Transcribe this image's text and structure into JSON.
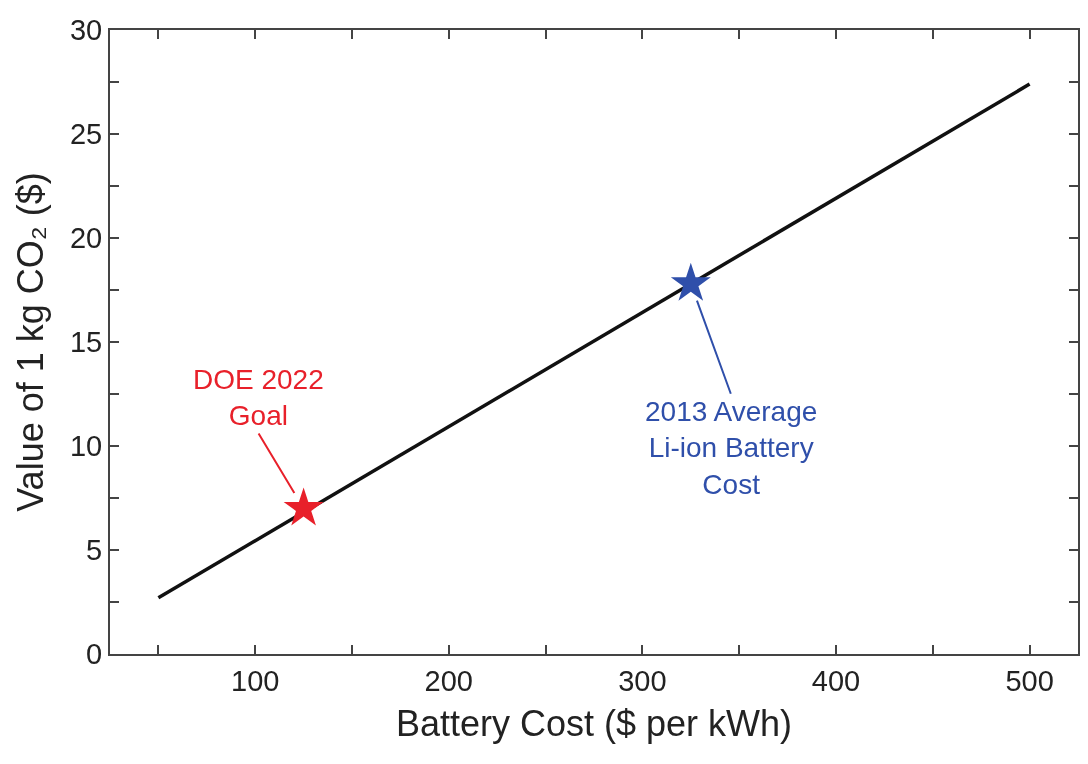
{
  "chart_data": {
    "type": "line",
    "xlabel": "Battery Cost ($ per kWh)",
    "ylabel": "Value of 1 kg CO₂ ($)",
    "xlim": [
      25,
      525
    ],
    "ylim": [
      0,
      30
    ],
    "xticks": [
      {
        "value": 50,
        "label": null
      },
      100,
      {
        "value": 150,
        "label": null
      },
      200,
      {
        "value": 250,
        "label": null
      },
      300,
      {
        "value": 350,
        "label": null
      },
      400,
      {
        "value": 450,
        "label": null
      },
      500
    ],
    "yticks": [
      0,
      {
        "value": 2.5,
        "label": null
      },
      5,
      {
        "value": 7.5,
        "label": null
      },
      10,
      {
        "value": 12.5,
        "label": null
      },
      15,
      {
        "value": 17.5,
        "label": null
      },
      20,
      {
        "value": 22.5,
        "label": null
      },
      25,
      {
        "value": 27.5,
        "label": null
      },
      30
    ],
    "series": [
      {
        "color": "#111111",
        "x": [
          50,
          500
        ],
        "values": [
          2.7,
          27.4
        ],
        "marker": "none",
        "line_style": "solid"
      },
      {
        "type": "scatter",
        "x": [
          125,
          325
        ],
        "values": [
          7,
          17.8
        ],
        "colors": [
          "#e8202a",
          "#2f4faa"
        ],
        "marker": "star"
      }
    ],
    "annotations": [
      {
        "text": "DOE 2022\nGoal",
        "x": 125,
        "y": 7
      },
      {
        "text": "2013 Average\nLi-ion Battery\nCost",
        "x": 325,
        "y": 17.8
      }
    ]
  }
}
